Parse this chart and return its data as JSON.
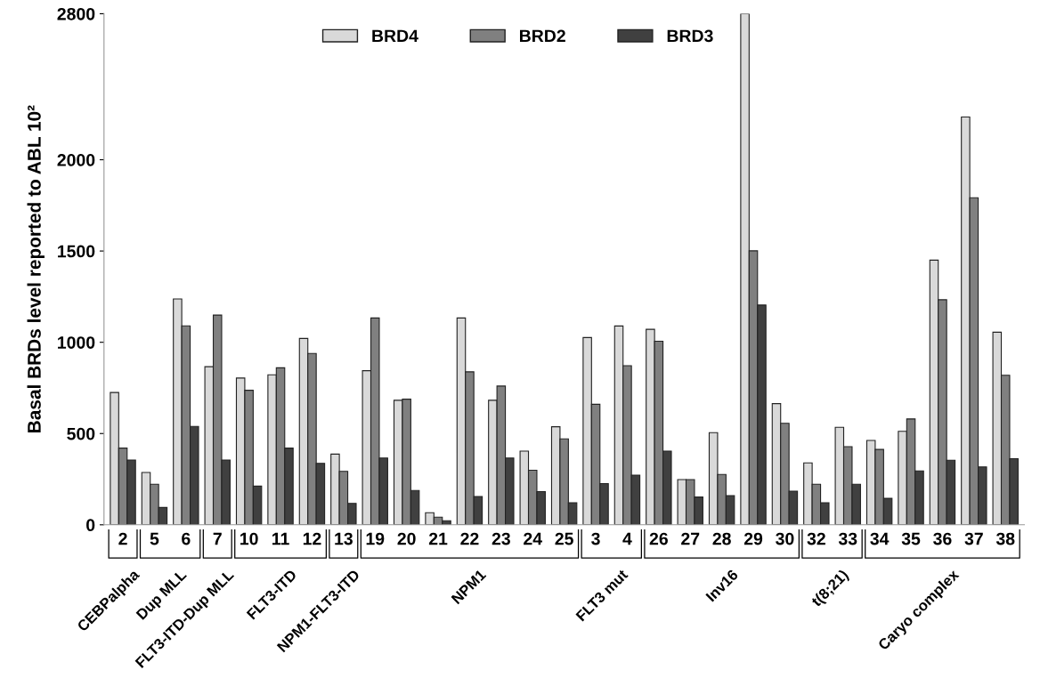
{
  "chart_data": {
    "type": "bar",
    "ylabel": "Basal BRDs level reported to ABL 10²",
    "categories": [
      "2",
      "5",
      "6",
      "7",
      "10",
      "11",
      "12",
      "13",
      "19",
      "20",
      "21",
      "22",
      "23",
      "24",
      "25",
      "3",
      "4",
      "26",
      "27",
      "28",
      "29",
      "30",
      "32",
      "33",
      "34",
      "35",
      "36",
      "37",
      "38"
    ],
    "series": [
      {
        "name": "BRD4",
        "color": "#d9d9d9",
        "values": [
          725,
          287,
          1237,
          866,
          804,
          822,
          1021,
          387,
          844,
          682,
          66,
          1133,
          682,
          404,
          537,
          1026,
          1089,
          1071,
          248,
          505,
          2800,
          664,
          339,
          534,
          462,
          512,
          1450,
          2234,
          1055
        ]
      },
      {
        "name": "BRD2",
        "color": "#808080",
        "values": [
          420,
          222,
          1090,
          1149,
          737,
          860,
          939,
          293,
          1133,
          688,
          42,
          838,
          760,
          299,
          471,
          660,
          872,
          1006,
          248,
          276,
          1501,
          556,
          222,
          428,
          413,
          580,
          1233,
          1792,
          819
        ]
      },
      {
        "name": "BRD3",
        "color": "#404040",
        "values": [
          355,
          95,
          539,
          355,
          212,
          420,
          337,
          117,
          366,
          188,
          22,
          155,
          366,
          182,
          121,
          226,
          272,
          404,
          152,
          160,
          1204,
          184,
          121,
          222,
          145,
          295,
          354,
          317,
          362
        ]
      }
    ],
    "ylim": [
      0,
      2800
    ],
    "yticks": [
      0,
      500,
      1000,
      1500,
      2000,
      2800
    ],
    "grid": false,
    "legend": "top",
    "annotations": [
      "CEBPalpha",
      "Dup MLL",
      "FLT3-ITD-Dup MLL",
      "FLT3-ITD",
      "NPM1-FLT3-ITD",
      "NPM1",
      "FLT3 mut",
      "Inv16",
      "t(8;21)",
      "Caryo complex"
    ]
  }
}
